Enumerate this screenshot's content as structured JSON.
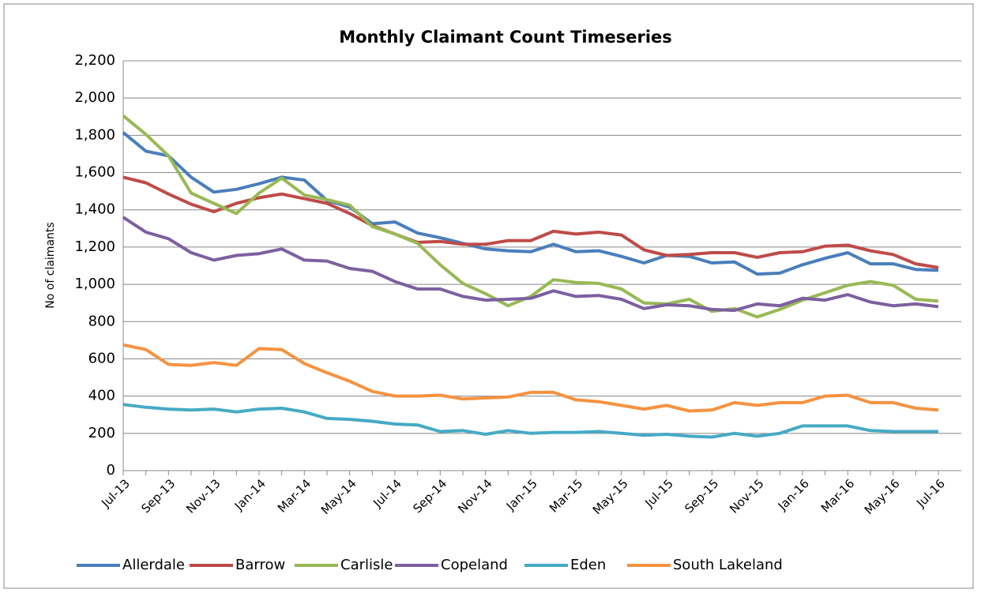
{
  "chart_data": {
    "type": "line",
    "title": "Monthly Claimant Count Timeseries",
    "y_label": "No of claimants",
    "categories": [
      "Jul-13",
      null,
      "Sep-13",
      null,
      "Nov-13",
      null,
      "Jan-14",
      null,
      "Mar-14",
      null,
      "May-14",
      null,
      "Jul-14",
      null,
      "Sep-14",
      null,
      "Nov-14",
      null,
      "Jan-15",
      null,
      "Mar-15",
      null,
      "May-15",
      null,
      "Jul-15",
      null,
      "Sep-15",
      null,
      "Nov-15",
      null,
      "Jan-16",
      null,
      "Mar-16",
      null,
      "May-16",
      null,
      "Jul-16"
    ],
    "series": [
      {
        "name": "Allerdale",
        "color": "#4a7ebb",
        "values": [
          1815,
          1715,
          1690,
          1575,
          1495,
          1510,
          1540,
          1575,
          1560,
          1450,
          1415,
          1325,
          1335,
          1275,
          1250,
          1220,
          1190,
          1180,
          1175,
          1215,
          1175,
          1180,
          1150,
          1115,
          1155,
          1150,
          1115,
          1120,
          1055,
          1060,
          1105,
          1140,
          1170,
          1110,
          1110,
          1080,
          1075
        ]
      },
      {
        "name": "Barrow",
        "color": "#be4b48",
        "values": [
          1575,
          1545,
          1485,
          1430,
          1390,
          1435,
          1465,
          1485,
          1460,
          1435,
          1380,
          1315,
          1270,
          1225,
          1230,
          1215,
          1215,
          1235,
          1235,
          1285,
          1270,
          1280,
          1265,
          1185,
          1155,
          1160,
          1170,
          1170,
          1145,
          1170,
          1175,
          1205,
          1210,
          1180,
          1160,
          1110,
          1090
        ]
      },
      {
        "name": "Carlisle",
        "color": "#98b954",
        "values": [
          1905,
          1805,
          1690,
          1490,
          1435,
          1380,
          1490,
          1570,
          1480,
          1455,
          1425,
          1310,
          1270,
          1220,
          1105,
          1005,
          950,
          885,
          935,
          1025,
          1010,
          1005,
          975,
          900,
          895,
          920,
          855,
          870,
          825,
          865,
          915,
          955,
          995,
          1015,
          995,
          920,
          910
        ]
      },
      {
        "name": "Copeland",
        "color": "#7d60a0",
        "values": [
          1360,
          1280,
          1245,
          1170,
          1130,
          1155,
          1165,
          1190,
          1130,
          1125,
          1085,
          1070,
          1015,
          975,
          975,
          935,
          915,
          920,
          925,
          965,
          935,
          940,
          920,
          870,
          890,
          885,
          865,
          860,
          895,
          885,
          925,
          915,
          945,
          905,
          885,
          895,
          880
        ]
      },
      {
        "name": "Eden",
        "color": "#46aac5",
        "values": [
          355,
          340,
          330,
          325,
          330,
          315,
          330,
          335,
          315,
          280,
          275,
          265,
          250,
          245,
          210,
          215,
          195,
          215,
          200,
          205,
          205,
          210,
          200,
          190,
          195,
          185,
          180,
          200,
          185,
          200,
          240,
          240,
          240,
          215,
          210,
          210,
          210
        ]
      },
      {
        "name": "South Lakeland",
        "color": "#f69240",
        "values": [
          675,
          650,
          570,
          565,
          580,
          565,
          655,
          650,
          575,
          525,
          480,
          425,
          400,
          400,
          405,
          385,
          390,
          395,
          420,
          420,
          380,
          370,
          350,
          330,
          350,
          320,
          325,
          365,
          350,
          365,
          365,
          400,
          405,
          365,
          365,
          335,
          325
        ]
      }
    ],
    "ylim": [
      0,
      2200
    ],
    "yticks": [
      0,
      200,
      400,
      600,
      800,
      {
        "value": 1000,
        "label": "1,000"
      },
      {
        "value": 1200,
        "label": "1,200"
      },
      {
        "value": 1400,
        "label": "1,400"
      },
      {
        "value": 1600,
        "label": "1,600"
      },
      {
        "value": 1800,
        "label": "1,800"
      },
      {
        "value": 2000,
        "label": "2,000"
      },
      {
        "value": 2200,
        "label": "2,200"
      }
    ],
    "grid": true,
    "legend": "bottom"
  }
}
